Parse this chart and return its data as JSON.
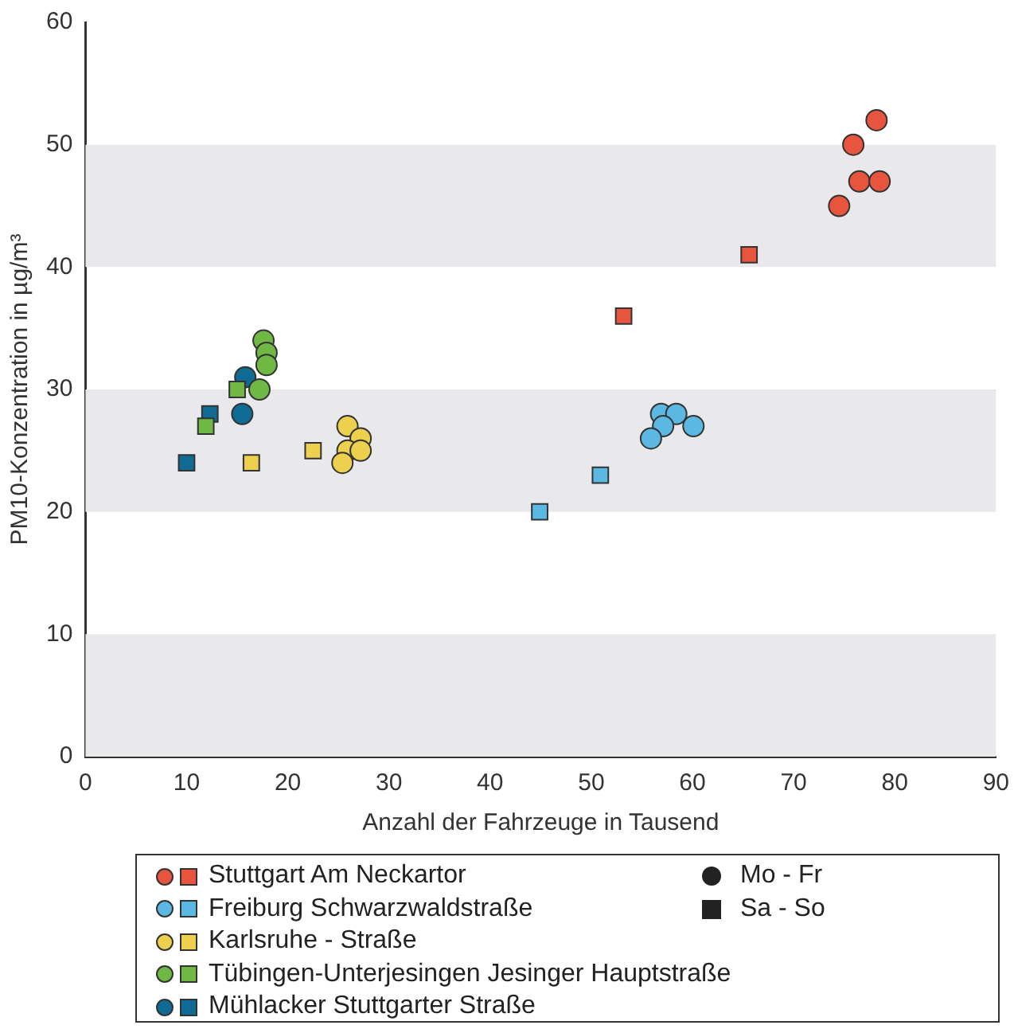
{
  "chart_data": {
    "type": "scatter",
    "xlabel": "Anzahl der Fahrzeuge in Tausend",
    "ylabel": "PM10-Konzentration in µg/m³",
    "xlim": [
      0,
      90
    ],
    "xticks": [
      0,
      10,
      20,
      30,
      40,
      50,
      60,
      70,
      80,
      90
    ],
    "ylim": [
      0,
      60
    ],
    "yticks": [
      0,
      10,
      20,
      30,
      40,
      50,
      60
    ],
    "legend": "bottom",
    "series": [
      {
        "name": "Stuttgart Am Neckartor",
        "color": "#e8553e",
        "marker": "circle",
        "x": [
          75.9,
          78.2,
          76.5,
          78.5,
          74.5
        ],
        "values": [
          50,
          52,
          47,
          47,
          45
        ]
      },
      {
        "color": "#e8553e",
        "marker": "square",
        "x": [
          65.6,
          53.2
        ],
        "values": [
          41,
          36
        ]
      },
      {
        "name": "Freiburg Schwarzwaldstraße",
        "color": "#5bb8e2",
        "marker": "circle",
        "x": [
          56.9,
          58.4,
          57.1,
          55.9,
          60.1
        ],
        "values": [
          28,
          28,
          27,
          26,
          27
        ]
      },
      {
        "color": "#5bb8e2",
        "marker": "square",
        "x": [
          50.9,
          44.9
        ],
        "values": [
          23,
          20
        ]
      },
      {
        "name": "Karlsruhe - Straße",
        "color": "#ecd04e",
        "marker": "circle",
        "x": [
          25.9,
          27.2,
          25.9,
          27.2,
          25.4
        ],
        "values": [
          27,
          26,
          25,
          25,
          24
        ]
      },
      {
        "color": "#ecd04e",
        "marker": "square",
        "x": [
          22.5,
          16.4
        ],
        "values": [
          25,
          24
        ]
      },
      {
        "name": "Tübingen-Unterjesingen Jesinger Hauptstraße",
        "color": "#6fb844",
        "marker": "circle",
        "x": [
          17.6,
          17.9,
          17.9,
          17.2
        ],
        "values": [
          34,
          33,
          32,
          30
        ]
      },
      {
        "color": "#6fb844",
        "marker": "square",
        "x": [
          15.0,
          11.9
        ],
        "values": [
          30,
          27
        ]
      },
      {
        "name": "Mühlacker Stuttgarter Straße",
        "color": "#0f6a94",
        "marker": "circle",
        "x": [
          15.8,
          15.5
        ],
        "values": [
          31,
          28
        ]
      },
      {
        "color": "#0f6a94",
        "marker": "square",
        "x": [
          12.3,
          10.0
        ],
        "values": [
          28,
          24
        ]
      }
    ],
    "annotations": [
      "Mo - Fr",
      "Sa - So"
    ]
  }
}
